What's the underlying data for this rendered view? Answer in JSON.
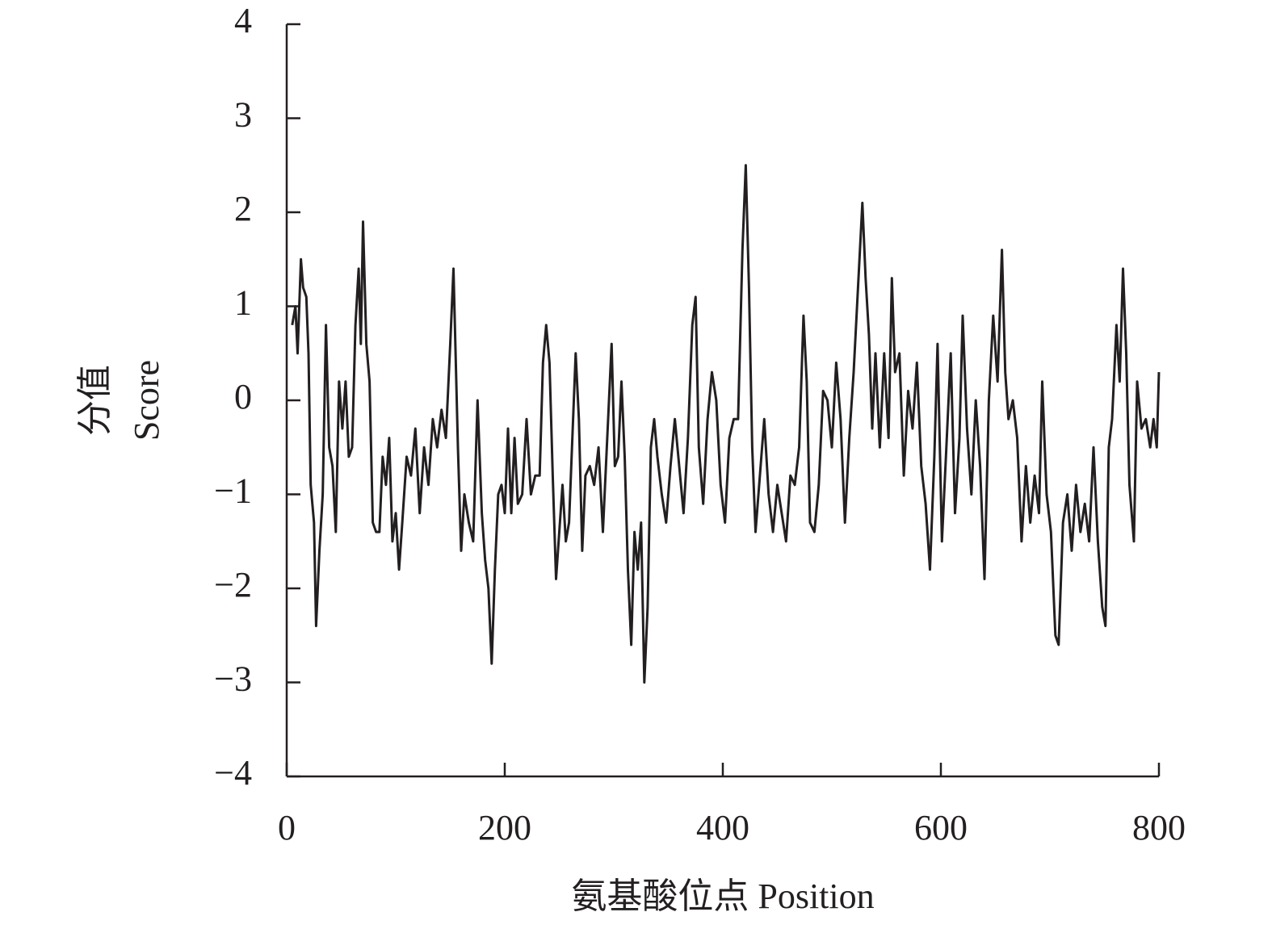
{
  "chart_data": {
    "type": "line",
    "xlabel": "氨基酸位点 Position",
    "ylabel": [
      "分值",
      "Score"
    ],
    "color": "#231f20",
    "xlim": [
      0,
      800
    ],
    "xticks": [
      0,
      200,
      400,
      600,
      800
    ],
    "ylim": [
      -4,
      4
    ],
    "yticks": [
      {
        "value": -4,
        "label": "−4"
      },
      {
        "value": -3,
        "label": "−3"
      },
      {
        "value": -2,
        "label": "−2"
      },
      {
        "value": -1,
        "label": "−1"
      },
      0,
      1,
      2,
      3,
      4
    ],
    "x": [
      5,
      8,
      10,
      13,
      15,
      18,
      20,
      22,
      25,
      27,
      30,
      33,
      36,
      39,
      42,
      45,
      48,
      51,
      54,
      57,
      60,
      63,
      66,
      68,
      70,
      73,
      76,
      79,
      82,
      85,
      88,
      91,
      94,
      97,
      100,
      103,
      106,
      110,
      114,
      118,
      122,
      126,
      130,
      134,
      138,
      142,
      146,
      150,
      153,
      157,
      160,
      163,
      167,
      171,
      175,
      179,
      182,
      185,
      188,
      191,
      194,
      197,
      200,
      203,
      206,
      209,
      212,
      216,
      220,
      224,
      228,
      232,
      235,
      238,
      241,
      244,
      247,
      250,
      253,
      256,
      259,
      262,
      265,
      268,
      271,
      274,
      278,
      282,
      286,
      290,
      294,
      298,
      301,
      304,
      307,
      310,
      313,
      316,
      319,
      322,
      325,
      328,
      331,
      334,
      337,
      340,
      344,
      348,
      352,
      356,
      360,
      364,
      368,
      372,
      375,
      378,
      382,
      386,
      390,
      394,
      398,
      402,
      406,
      410,
      414,
      418,
      421,
      424,
      427,
      430,
      434,
      438,
      442,
      446,
      450,
      454,
      458,
      462,
      466,
      470,
      474,
      477,
      480,
      484,
      488,
      492,
      496,
      500,
      504,
      508,
      512,
      516,
      520,
      524,
      528,
      531,
      534,
      537,
      540,
      544,
      548,
      552,
      555,
      558,
      562,
      566,
      570,
      574,
      578,
      582,
      586,
      590,
      594,
      597,
      601,
      605,
      609,
      613,
      617,
      620,
      624,
      628,
      632,
      636,
      640,
      644,
      648,
      652,
      656,
      659,
      662,
      666,
      670,
      674,
      678,
      682,
      686,
      690,
      693,
      697,
      701,
      705,
      708,
      712,
      716,
      720,
      724,
      728,
      732,
      736,
      740,
      744,
      748,
      751,
      754,
      757,
      761,
      764,
      767,
      770,
      773,
      777,
      780,
      784,
      788,
      792,
      795,
      798,
      800
    ],
    "values": [
      0.8,
      1.0,
      0.5,
      1.5,
      1.2,
      1.1,
      0.5,
      -0.9,
      -1.3,
      -2.4,
      -1.6,
      -1.0,
      0.8,
      -0.5,
      -0.7,
      -1.4,
      0.2,
      -0.3,
      0.2,
      -0.6,
      -0.5,
      0.8,
      1.4,
      0.6,
      1.9,
      0.6,
      0.2,
      -1.3,
      -1.4,
      -1.4,
      -0.6,
      -0.9,
      -0.4,
      -1.5,
      -1.2,
      -1.8,
      -1.3,
      -0.6,
      -0.8,
      -0.3,
      -1.2,
      -0.5,
      -0.9,
      -0.2,
      -0.5,
      -0.1,
      -0.4,
      0.6,
      1.4,
      -0.5,
      -1.6,
      -1.0,
      -1.3,
      -1.5,
      0.0,
      -1.2,
      -1.7,
      -2.0,
      -2.8,
      -1.8,
      -1.0,
      -0.9,
      -1.2,
      -0.3,
      -1.2,
      -0.4,
      -1.1,
      -1.0,
      -0.2,
      -1.0,
      -0.8,
      -0.8,
      0.4,
      0.8,
      0.4,
      -0.8,
      -1.9,
      -1.4,
      -0.9,
      -1.5,
      -1.3,
      -0.4,
      0.5,
      -0.2,
      -1.6,
      -0.8,
      -0.7,
      -0.9,
      -0.5,
      -1.4,
      -0.4,
      0.6,
      -0.7,
      -0.6,
      0.2,
      -0.6,
      -1.8,
      -2.6,
      -1.4,
      -1.8,
      -1.3,
      -3.0,
      -2.2,
      -0.5,
      -0.2,
      -0.6,
      -1.0,
      -1.3,
      -0.7,
      -0.2,
      -0.7,
      -1.2,
      -0.4,
      0.8,
      1.1,
      -0.5,
      -1.1,
      -0.2,
      0.3,
      0.0,
      -0.9,
      -1.3,
      -0.4,
      -0.2,
      -0.2,
      1.6,
      2.5,
      1.2,
      -0.5,
      -1.4,
      -0.8,
      -0.2,
      -1.0,
      -1.4,
      -0.9,
      -1.2,
      -1.5,
      -0.8,
      -0.9,
      -0.5,
      0.9,
      0.2,
      -1.3,
      -1.4,
      -0.9,
      0.1,
      0.0,
      -0.5,
      0.4,
      -0.2,
      -1.3,
      -0.4,
      0.3,
      1.2,
      2.1,
      1.3,
      0.7,
      -0.3,
      0.5,
      -0.5,
      0.5,
      -0.4,
      1.3,
      0.3,
      0.5,
      -0.8,
      0.1,
      -0.3,
      0.4,
      -0.7,
      -1.1,
      -1.8,
      -0.6,
      0.6,
      -1.5,
      -0.5,
      0.5,
      -1.2,
      -0.4,
      0.9,
      -0.3,
      -1.0,
      0.0,
      -0.7,
      -1.9,
      0.0,
      0.9,
      0.2,
      1.6,
      0.3,
      -0.2,
      0.0,
      -0.4,
      -1.5,
      -0.7,
      -1.3,
      -0.8,
      -1.2,
      0.2,
      -1.0,
      -1.4,
      -2.5,
      -2.6,
      -1.3,
      -1.0,
      -1.6,
      -0.9,
      -1.4,
      -1.1,
      -1.5,
      -0.5,
      -1.5,
      -2.2,
      -2.4,
      -0.5,
      -0.2,
      0.8,
      0.2,
      1.4,
      0.5,
      -0.9,
      -1.5,
      0.2,
      -0.3,
      -0.2,
      -0.5,
      -0.2,
      -0.5,
      0.3
    ]
  }
}
